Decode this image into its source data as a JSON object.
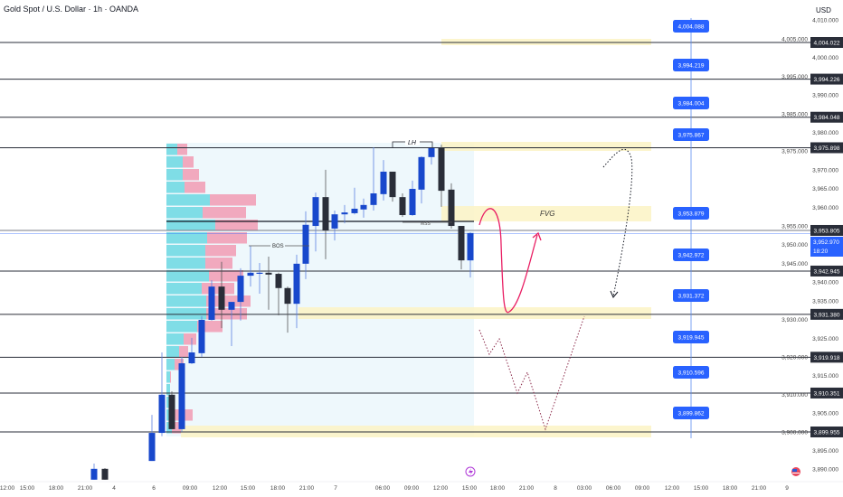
{
  "header": {
    "title": "Gold Spot / U.S. Dollar · 1h · OANDA",
    "currency": "USD"
  },
  "colors": {
    "up": "#1848cc",
    "down": "#2a2e39",
    "zone": "#fbf3c4",
    "profile_buy": "#7fdde6",
    "profile_sell": "#f19bb3",
    "label_blue": "#2962ff",
    "price_line": "#2962ff",
    "path_red": "#e91e63",
    "path_dotted": "#8b2a4a"
  },
  "chart_data": {
    "type": "candlestick",
    "ylim": [
      3886,
      4012
    ],
    "y_ticks": [
      4010,
      4005,
      4000,
      3995,
      3990,
      3985,
      3980,
      3975,
      3970,
      3965,
      3960,
      3955,
      3950,
      3945,
      3940,
      3935,
      3930,
      3925,
      3920,
      3915,
      3910,
      3905,
      3900,
      3895,
      3890
    ],
    "x_ticks": [
      "12:00",
      "15:00",
      "18:00",
      "21:00",
      "4",
      "6",
      "09:00",
      "12:00",
      "15:00",
      "18:00",
      "21:00",
      "7",
      "06:00",
      "09:00",
      "12:00",
      "15:00",
      "18:00",
      "21:00",
      "8",
      "03:00",
      "06:00",
      "09:00",
      "12:00",
      "15:00",
      "18:00",
      "21:00",
      "9"
    ],
    "candles": [
      [
        3887.2,
        3891.5,
        3887.2,
        3890.1
      ],
      [
        3890.1,
        3890.3,
        3887.2,
        3887.2
      ],
      [
        3892.2,
        3904.5,
        3892.2,
        3899.7
      ],
      [
        3899.7,
        3921.2,
        3898.8,
        3909.9
      ],
      [
        3909.9,
        3910.8,
        3900.7,
        3900.7
      ],
      [
        3900.7,
        3920.0,
        3900.0,
        3918.3
      ],
      [
        3918.3,
        3925.1,
        3918.1,
        3921.2
      ],
      [
        3921.0,
        3930.9,
        3920.0,
        3929.9
      ],
      [
        3929.9,
        3940.5,
        3929.7,
        3938.8
      ],
      [
        3938.8,
        3945.4,
        3927.7,
        3932.6
      ],
      [
        3932.6,
        3934.7,
        3922.9,
        3934.7
      ],
      [
        3934.7,
        3943.7,
        3929.7,
        3941.7
      ],
      [
        3941.7,
        3949.7,
        3938.8,
        3942.5
      ],
      [
        3942.5,
        3945.1,
        3936.9,
        3942.5
      ],
      [
        3942.5,
        3946.8,
        3932.6,
        3942.0
      ],
      [
        3942.2,
        3942.5,
        3931.1,
        3938.4
      ],
      [
        3938.4,
        3938.8,
        3926.5,
        3934.2
      ],
      [
        3934.2,
        3947.3,
        3927.7,
        3944.9
      ],
      [
        3944.9,
        3958.9,
        3940.8,
        3955.3
      ],
      [
        3955.0,
        3963.9,
        3948.2,
        3962.7
      ],
      [
        3962.7,
        3970.0,
        3946.1,
        3953.8
      ],
      [
        3954.3,
        3959.1,
        3951.1,
        3958.1
      ],
      [
        3958.1,
        3960.6,
        3955.7,
        3958.6
      ],
      [
        3958.4,
        3965.2,
        3958.1,
        3959.6
      ],
      [
        3959.4,
        3962.3,
        3957.2,
        3960.6
      ],
      [
        3960.6,
        3976.0,
        3959.1,
        3963.7
      ],
      [
        3963.5,
        3972.6,
        3961.8,
        3969.5
      ],
      [
        3969.5,
        3969.5,
        3961.5,
        3962.7
      ],
      [
        3962.7,
        3963.7,
        3957.4,
        3957.9
      ],
      [
        3957.9,
        3967.1,
        3957.7,
        3964.9
      ],
      [
        3964.7,
        3973.6,
        3961.0,
        3973.4
      ],
      [
        3973.4,
        3975.8,
        3971.4,
        3975.8
      ],
      [
        3975.8,
        3976.7,
        3960.1,
        3964.4
      ],
      [
        3964.7,
        3966.4,
        3954.3,
        3955.0
      ],
      [
        3955.0,
        3955.0,
        3943.4,
        3945.8
      ],
      [
        3945.8,
        3953.3,
        3941.2,
        3953.1
      ]
    ],
    "volume_profile": {
      "buy": [
        12,
        18,
        18,
        20,
        48,
        40,
        54,
        45,
        43,
        43,
        47,
        39,
        44,
        44,
        34,
        19,
        14,
        9,
        4,
        4,
        4,
        6,
        6
      ],
      "sell": [
        11,
        12,
        18,
        23,
        51,
        48,
        47,
        44,
        34,
        30,
        38,
        36,
        49,
        45,
        28,
        14,
        10,
        10,
        1,
        0,
        0,
        23,
        10
      ]
    },
    "levels": [
      "4,004.022",
      "3,994.226",
      "3,984.048",
      "3,975.898",
      "3,953.805",
      "3,942.945",
      "3,931.380",
      "3,919.918",
      "3,910.351",
      "3,899.955"
    ],
    "current_price": {
      "value": "3,952.970",
      "countdown": "18:20"
    },
    "target_labels": [
      "4,004.088",
      "3,994.219",
      "3,984.004",
      "3,975.867",
      "3,953.879",
      "3,942.972",
      "3,931.372",
      "3,919.945",
      "3,910.596",
      "3,899.862"
    ],
    "annotations": {
      "lh": "LH",
      "mss": "MSS",
      "bos": "BOS",
      "fvg": "FVG"
    },
    "icons": {
      "event": "lightning-icon",
      "flag": "us-flag-icon"
    }
  }
}
